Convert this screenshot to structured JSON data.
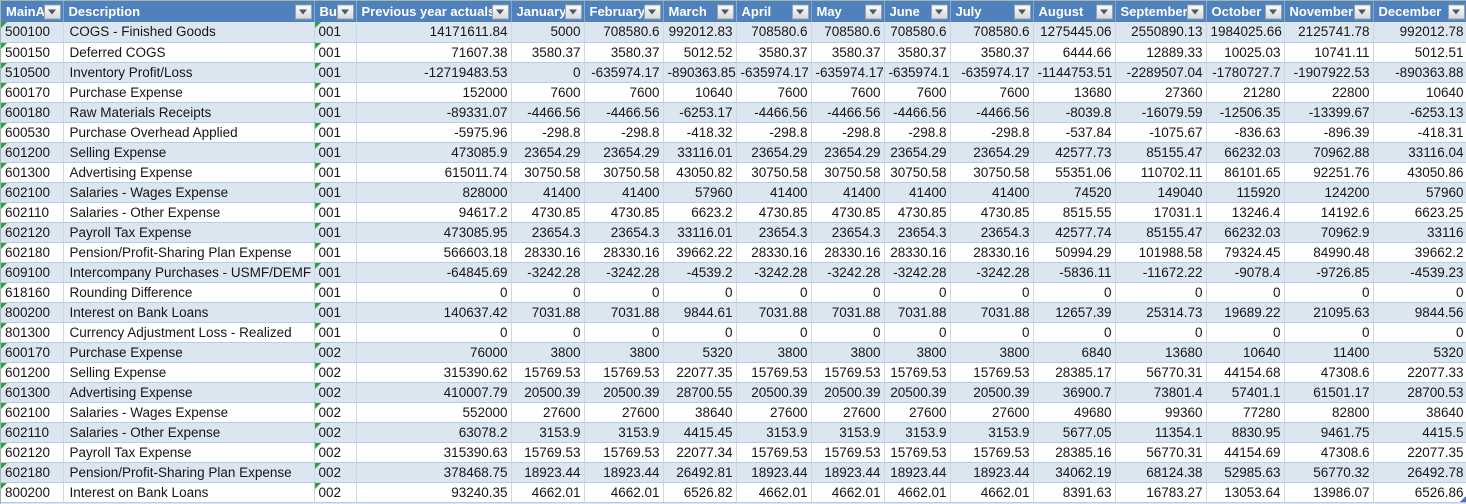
{
  "app": {
    "name": "Financial budget spreadsheet table"
  },
  "colors": {
    "header_bg": "#4f81bd",
    "header_text": "#ffffff",
    "banded_row": "#dce6f1",
    "white_row": "#ffffff",
    "grid_line_h": "#b9cce2",
    "grid_line_v": "#ccd8e6",
    "error_flag_green": "#2f9e44",
    "table_resize_handle_blue": "#4472c4"
  },
  "icons": {
    "filter_dropdown": "chevron-down-icon",
    "cell_error_flag": "green-corner-triangle-icon",
    "table_corner": "table-resize-handle-icon"
  },
  "table": {
    "columns": [
      {
        "label": "MainA",
        "key": "main-account"
      },
      {
        "label": "Description",
        "key": "description"
      },
      {
        "label": "Bus",
        "key": "business-unit"
      },
      {
        "label": "Previous year actuals",
        "key": "previous-year-actuals"
      },
      {
        "label": "January",
        "key": "january"
      },
      {
        "label": "February",
        "key": "february"
      },
      {
        "label": "March",
        "key": "march"
      },
      {
        "label": "April",
        "key": "april"
      },
      {
        "label": "May",
        "key": "may"
      },
      {
        "label": "June",
        "key": "june"
      },
      {
        "label": "July",
        "key": "july"
      },
      {
        "label": "August",
        "key": "august"
      },
      {
        "label": "September",
        "key": "september"
      },
      {
        "label": "October",
        "key": "october"
      },
      {
        "label": "November",
        "key": "november"
      },
      {
        "label": "December",
        "key": "december"
      }
    ],
    "rows": [
      [
        "500100",
        "COGS - Finished Goods",
        "001",
        "14171611.84",
        "5000",
        "708580.6",
        "992012.83",
        "708580.6",
        "708580.6",
        "708580.6",
        "708580.6",
        "1275445.06",
        "2550890.13",
        "1984025.66",
        "2125741.78",
        "992012.78"
      ],
      [
        "500150",
        "Deferred COGS",
        "001",
        "71607.38",
        "3580.37",
        "3580.37",
        "5012.52",
        "3580.37",
        "3580.37",
        "3580.37",
        "3580.37",
        "6444.66",
        "12889.33",
        "10025.03",
        "10741.11",
        "5012.51"
      ],
      [
        "510500",
        "Inventory Profit/Loss",
        "001",
        "-12719483.53",
        "0",
        "-635974.17",
        "-890363.85",
        "-635974.17",
        "-635974.17",
        "-635974.17",
        "-635974.17",
        "-1144753.51",
        "-2289507.04",
        "-1780727.7",
        "-1907922.53",
        "-890363.88"
      ],
      [
        "600170",
        "Purchase Expense",
        "001",
        "152000",
        "7600",
        "7600",
        "10640",
        "7600",
        "7600",
        "7600",
        "7600",
        "13680",
        "27360",
        "21280",
        "22800",
        "10640"
      ],
      [
        "600180",
        "Raw Materials Receipts",
        "001",
        "-89331.07",
        "-4466.56",
        "-4466.56",
        "-6253.17",
        "-4466.56",
        "-4466.56",
        "-4466.56",
        "-4466.56",
        "-8039.8",
        "-16079.59",
        "-12506.35",
        "-13399.67",
        "-6253.13"
      ],
      [
        "600530",
        "Purchase Overhead Applied",
        "001",
        "-5975.96",
        "-298.8",
        "-298.8",
        "-418.32",
        "-298.8",
        "-298.8",
        "-298.8",
        "-298.8",
        "-537.84",
        "-1075.67",
        "-836.63",
        "-896.39",
        "-418.31"
      ],
      [
        "601200",
        "Selling Expense",
        "001",
        "473085.9",
        "23654.29",
        "23654.29",
        "33116.01",
        "23654.29",
        "23654.29",
        "23654.29",
        "23654.29",
        "42577.73",
        "85155.47",
        "66232.03",
        "70962.88",
        "33116.04"
      ],
      [
        "601300",
        "Advertising Expense",
        "001",
        "615011.74",
        "30750.58",
        "30750.58",
        "43050.82",
        "30750.58",
        "30750.58",
        "30750.58",
        "30750.58",
        "55351.06",
        "110702.11",
        "86101.65",
        "92251.76",
        "43050.86"
      ],
      [
        "602100",
        "Salaries - Wages Expense",
        "001",
        "828000",
        "41400",
        "41400",
        "57960",
        "41400",
        "41400",
        "41400",
        "41400",
        "74520",
        "149040",
        "115920",
        "124200",
        "57960"
      ],
      [
        "602110",
        "Salaries - Other Expense",
        "001",
        "94617.2",
        "4730.85",
        "4730.85",
        "6623.2",
        "4730.85",
        "4730.85",
        "4730.85",
        "4730.85",
        "8515.55",
        "17031.1",
        "13246.4",
        "14192.6",
        "6623.25"
      ],
      [
        "602120",
        "Payroll Tax Expense",
        "001",
        "473085.95",
        "23654.3",
        "23654.3",
        "33116.01",
        "23654.3",
        "23654.3",
        "23654.3",
        "23654.3",
        "42577.74",
        "85155.47",
        "66232.03",
        "70962.9",
        "33116"
      ],
      [
        "602180",
        "Pension/Profit-Sharing Plan Expense",
        "001",
        "566603.18",
        "28330.16",
        "28330.16",
        "39662.22",
        "28330.16",
        "28330.16",
        "28330.16",
        "28330.16",
        "50994.29",
        "101988.58",
        "79324.45",
        "84990.48",
        "39662.2"
      ],
      [
        "609100",
        "Intercompany Purchases - USMF/DEMF",
        "001",
        "-64845.69",
        "-3242.28",
        "-3242.28",
        "-4539.2",
        "-3242.28",
        "-3242.28",
        "-3242.28",
        "-3242.28",
        "-5836.11",
        "-11672.22",
        "-9078.4",
        "-9726.85",
        "-4539.23"
      ],
      [
        "618160",
        "Rounding Difference",
        "001",
        "0",
        "0",
        "0",
        "0",
        "0",
        "0",
        "0",
        "0",
        "0",
        "0",
        "0",
        "0",
        "0"
      ],
      [
        "800200",
        "Interest on Bank Loans",
        "001",
        "140637.42",
        "7031.88",
        "7031.88",
        "9844.61",
        "7031.88",
        "7031.88",
        "7031.88",
        "7031.88",
        "12657.39",
        "25314.73",
        "19689.22",
        "21095.63",
        "9844.56"
      ],
      [
        "801300",
        "Currency Adjustment Loss - Realized",
        "001",
        "0",
        "0",
        "0",
        "0",
        "0",
        "0",
        "0",
        "0",
        "0",
        "0",
        "0",
        "0",
        "0"
      ],
      [
        "600170",
        "Purchase Expense",
        "002",
        "76000",
        "3800",
        "3800",
        "5320",
        "3800",
        "3800",
        "3800",
        "3800",
        "6840",
        "13680",
        "10640",
        "11400",
        "5320"
      ],
      [
        "601200",
        "Selling Expense",
        "002",
        "315390.62",
        "15769.53",
        "15769.53",
        "22077.35",
        "15769.53",
        "15769.53",
        "15769.53",
        "15769.53",
        "28385.17",
        "56770.31",
        "44154.68",
        "47308.6",
        "22077.33"
      ],
      [
        "601300",
        "Advertising Expense",
        "002",
        "410007.79",
        "20500.39",
        "20500.39",
        "28700.55",
        "20500.39",
        "20500.39",
        "20500.39",
        "20500.39",
        "36900.7",
        "73801.4",
        "57401.1",
        "61501.17",
        "28700.53"
      ],
      [
        "602100",
        "Salaries - Wages Expense",
        "002",
        "552000",
        "27600",
        "27600",
        "38640",
        "27600",
        "27600",
        "27600",
        "27600",
        "49680",
        "99360",
        "77280",
        "82800",
        "38640"
      ],
      [
        "602110",
        "Salaries - Other Expense",
        "002",
        "63078.2",
        "3153.9",
        "3153.9",
        "4415.45",
        "3153.9",
        "3153.9",
        "3153.9",
        "3153.9",
        "5677.05",
        "11354.1",
        "8830.95",
        "9461.75",
        "4415.5"
      ],
      [
        "602120",
        "Payroll Tax Expense",
        "002",
        "315390.63",
        "15769.53",
        "15769.53",
        "22077.34",
        "15769.53",
        "15769.53",
        "15769.53",
        "15769.53",
        "28385.16",
        "56770.31",
        "44154.69",
        "47308.6",
        "22077.35"
      ],
      [
        "602180",
        "Pension/Profit-Sharing Plan Expense",
        "002",
        "378468.75",
        "18923.44",
        "18923.44",
        "26492.81",
        "18923.44",
        "18923.44",
        "18923.44",
        "18923.44",
        "34062.19",
        "68124.38",
        "52985.63",
        "56770.32",
        "26492.78"
      ],
      [
        "800200",
        "Interest on Bank Loans",
        "002",
        "93240.35",
        "4662.01",
        "4662.01",
        "6526.82",
        "4662.01",
        "4662.01",
        "4662.01",
        "4662.01",
        "8391.63",
        "16783.27",
        "13053.64",
        "13986.07",
        "6526.86"
      ]
    ]
  }
}
